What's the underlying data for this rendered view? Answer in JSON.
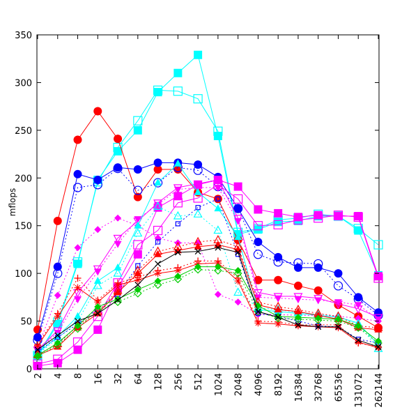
{
  "chart_data": {
    "type": "line",
    "ylabel": "mflops",
    "xlabel": "",
    "ylim": [
      0,
      350
    ],
    "y_ticks": [
      0,
      50,
      100,
      150,
      200,
      250,
      300,
      350
    ],
    "categories": [
      "2",
      "4",
      "8",
      "16",
      "32",
      "64",
      "128",
      "256",
      "512",
      "1024",
      "2048",
      "4096",
      "8192",
      "16384",
      "32768",
      "65536",
      "131072",
      "262144"
    ],
    "grid": false,
    "legend": "none",
    "series": [
      {
        "color": "#00ffff",
        "marker": "square-filled",
        "dash": "solid",
        "values": [
          13,
          47,
          110,
          198,
          228,
          250,
          290,
          310,
          329,
          244,
          141,
          146,
          154,
          155,
          160,
          160,
          145,
          98
        ]
      },
      {
        "color": "#00ffff",
        "marker": "square-open",
        "dash": "solid",
        "values": [
          14,
          49,
          112,
          196,
          232,
          260,
          292,
          291,
          283,
          249,
          143,
          147,
          156,
          158,
          162,
          160,
          147,
          130
        ]
      },
      {
        "color": "#ff0000",
        "marker": "circle-filled",
        "dash": "solid",
        "values": [
          41,
          155,
          240,
          270,
          241,
          180,
          209,
          209,
          185,
          178,
          135,
          93,
          93,
          87,
          82,
          67,
          55,
          43
        ]
      },
      {
        "color": "#0000ff",
        "marker": "circle-filled",
        "dash": "solid",
        "values": [
          33,
          107,
          204,
          198,
          211,
          209,
          216,
          216,
          214,
          201,
          168,
          133,
          117,
          106,
          106,
          100,
          75,
          59
        ]
      },
      {
        "color": "#0000ff",
        "marker": "circle-open",
        "dash": "dotted",
        "values": [
          30,
          100,
          190,
          193,
          210,
          187,
          195,
          211,
          208,
          191,
          168,
          120,
          112,
          111,
          110,
          87,
          73,
          56
        ]
      },
      {
        "color": "#ff00ff",
        "marker": "square-filled",
        "dash": "solid",
        "values": [
          3,
          6,
          20,
          41,
          85,
          120,
          169,
          181,
          193,
          198,
          191,
          167,
          163,
          159,
          161,
          160,
          160,
          97
        ]
      },
      {
        "color": "#ff00ff",
        "marker": "square-open",
        "dash": "solid",
        "values": [
          5,
          10,
          28,
          55,
          90,
          130,
          145,
          174,
          179,
          193,
          178,
          150,
          151,
          156,
          158,
          161,
          159,
          95
        ]
      },
      {
        "color": "#ff00ff",
        "marker": "triangle-down-open",
        "dash": "solid",
        "values": [
          20,
          40,
          80,
          105,
          137,
          155,
          174,
          190,
          194,
          198,
          158,
          80,
          76,
          76,
          74,
          68,
          63,
          54
        ]
      },
      {
        "color": "#ff00ff",
        "marker": "diamond-filled",
        "dash": "dotted",
        "values": [
          22,
          77,
          127,
          146,
          158,
          150,
          137,
          132,
          132,
          78,
          70,
          57,
          57,
          56,
          56,
          55,
          53,
          50
        ]
      },
      {
        "color": "#ff00ff",
        "marker": "triangle-down-filled",
        "dash": "dotted",
        "values": [
          19,
          38,
          73,
          102,
          131,
          157,
          172,
          188,
          190,
          190,
          155,
          75,
          74,
          73,
          72,
          70,
          67,
          52
        ]
      },
      {
        "color": "#00ffff",
        "marker": "triangle-up-filled",
        "dash": "solid",
        "values": [
          16,
          34,
          55,
          92,
          106,
          150,
          195,
          215,
          185,
          168,
          138,
          62,
          60,
          58,
          56,
          54,
          48,
          25
        ]
      },
      {
        "color": "#00ffff",
        "marker": "triangle-up-open",
        "dash": "dotted",
        "values": [
          15,
          32,
          50,
          87,
          100,
          142,
          170,
          160,
          162,
          145,
          80,
          64,
          62,
          59,
          57,
          55,
          47,
          21
        ]
      },
      {
        "color": "#0000ff",
        "marker": "square-open-small",
        "dash": "dotted",
        "values": [
          18,
          33,
          47,
          63,
          78,
          108,
          133,
          152,
          169,
          178,
          120,
          58,
          55,
          50,
          45,
          44,
          31,
          27
        ]
      },
      {
        "color": "#ff0000",
        "marker": "triangle-up-filled",
        "dash": "solid",
        "values": [
          14,
          23,
          43,
          58,
          80,
          100,
          120,
          124,
          128,
          130,
          125,
          67,
          62,
          60,
          56,
          52,
          43,
          41
        ]
      },
      {
        "color": "#ff0000",
        "marker": "triangle-up-open",
        "dash": "dotted",
        "values": [
          15,
          26,
          45,
          60,
          82,
          103,
          123,
          128,
          133,
          135,
          128,
          70,
          65,
          62,
          58,
          55,
          45,
          43
        ]
      },
      {
        "color": "#ff0000",
        "marker": "plus",
        "dash": "dotted",
        "values": [
          25,
          58,
          95,
          72,
          90,
          96,
          103,
          106,
          113,
          113,
          95,
          50,
          49,
          46,
          46,
          46,
          27,
          23
        ]
      },
      {
        "color": "#ff0000",
        "marker": "star",
        "dash": "solid",
        "values": [
          24,
          55,
          85,
          70,
          88,
          93,
          100,
          103,
          110,
          111,
          92,
          48,
          47,
          45,
          44,
          43,
          28,
          22
        ]
      },
      {
        "color": "#00cc00",
        "marker": "diamond-filled",
        "dash": "solid",
        "values": [
          14,
          27,
          45,
          65,
          73,
          83,
          92,
          97,
          107,
          107,
          103,
          66,
          55,
          54,
          53,
          52,
          45,
          29
        ]
      },
      {
        "color": "#00cc00",
        "marker": "diamond-open",
        "dash": "dotted",
        "values": [
          13,
          25,
          42,
          62,
          70,
          79,
          88,
          94,
          104,
          103,
          100,
          60,
          53,
          52,
          51,
          50,
          43,
          27
        ]
      },
      {
        "color": "#000000",
        "marker": "cross",
        "dash": "solid",
        "values": [
          20,
          35,
          50,
          58,
          72,
          88,
          110,
          122,
          123,
          127,
          122,
          60,
          54,
          46,
          44,
          44,
          30,
          23
        ]
      }
    ]
  }
}
